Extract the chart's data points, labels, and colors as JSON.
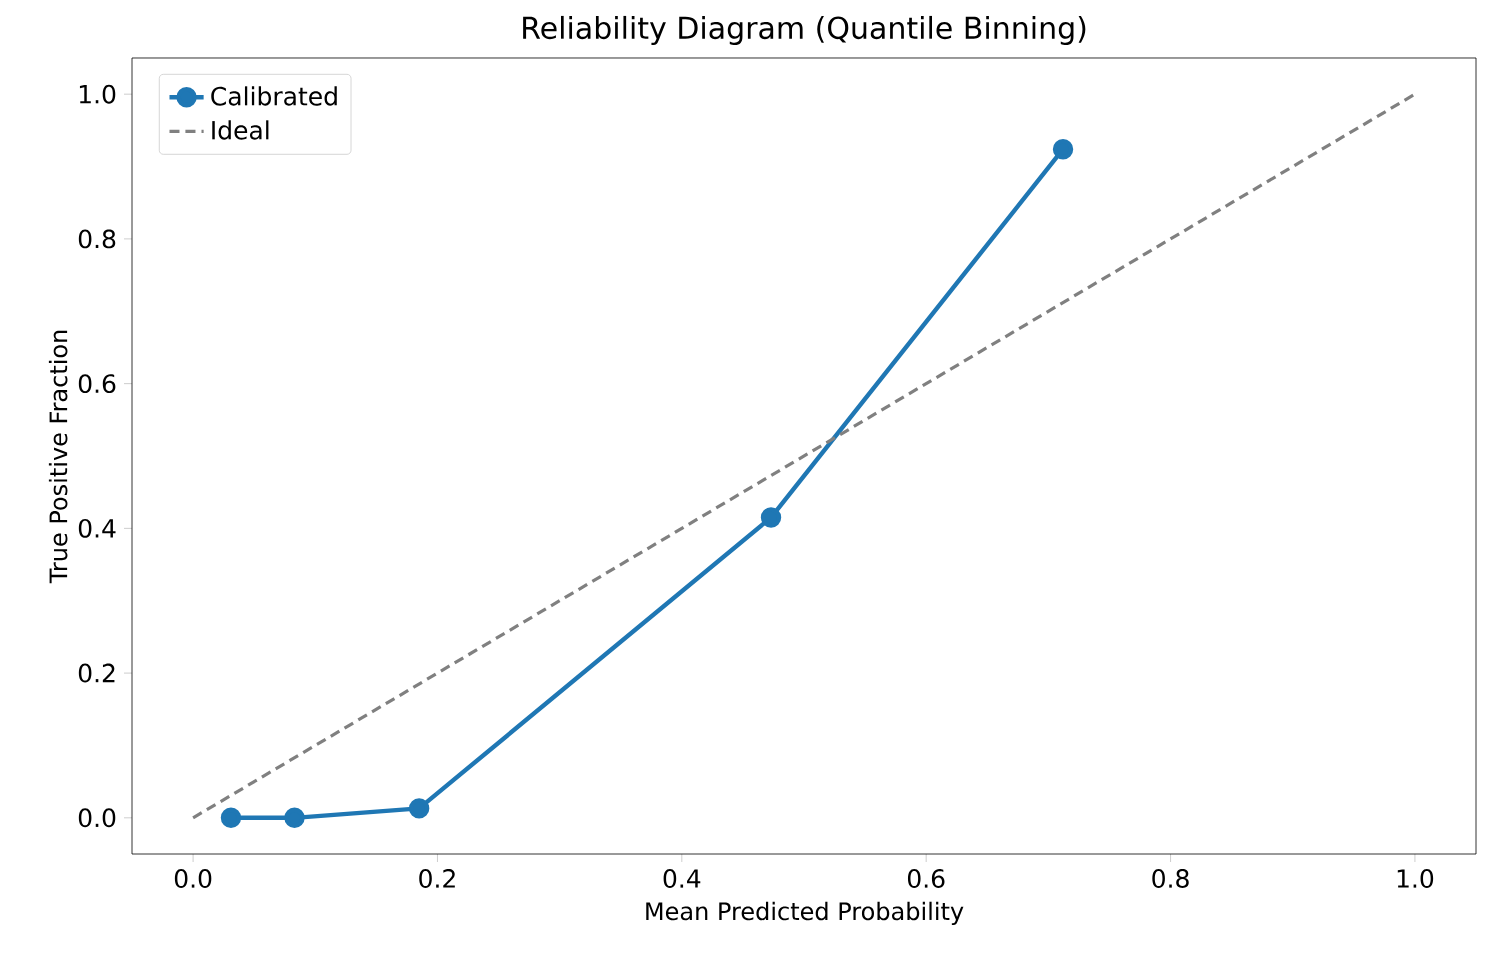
{
  "chart_data": {
    "type": "line",
    "title": "Reliability Diagram (Quantile Binning)",
    "xlabel": "Mean Predicted Probability",
    "ylabel": "True Positive Fraction",
    "xlim": [
      -0.05,
      1.05
    ],
    "ylim": [
      -0.05,
      1.05
    ],
    "xticks": [
      {
        "value": 0,
        "label": "0.0"
      },
      0.2,
      0.4,
      0.6,
      0.8,
      {
        "value": 1,
        "label": "1.0"
      }
    ],
    "yticks": [
      {
        "value": 0,
        "label": "0.0"
      },
      0.2,
      0.4,
      0.6,
      0.8,
      {
        "value": 1,
        "label": "1.0"
      }
    ],
    "grid": false,
    "legend": "top left",
    "series": [
      {
        "name": "Calibrated",
        "color": "#1f77b4",
        "marker": "circle",
        "line_style": "solid",
        "x": [
          0.031,
          0.083,
          0.185,
          0.473,
          0.712
        ],
        "values": [
          0.0,
          0.0,
          0.013,
          0.415,
          0.924
        ]
      },
      {
        "name": "Ideal",
        "color": "#808080",
        "marker": "none",
        "line_style": "dashed",
        "x": [
          0.0,
          1.0
        ],
        "values": [
          0.0,
          1.0
        ]
      }
    ]
  }
}
